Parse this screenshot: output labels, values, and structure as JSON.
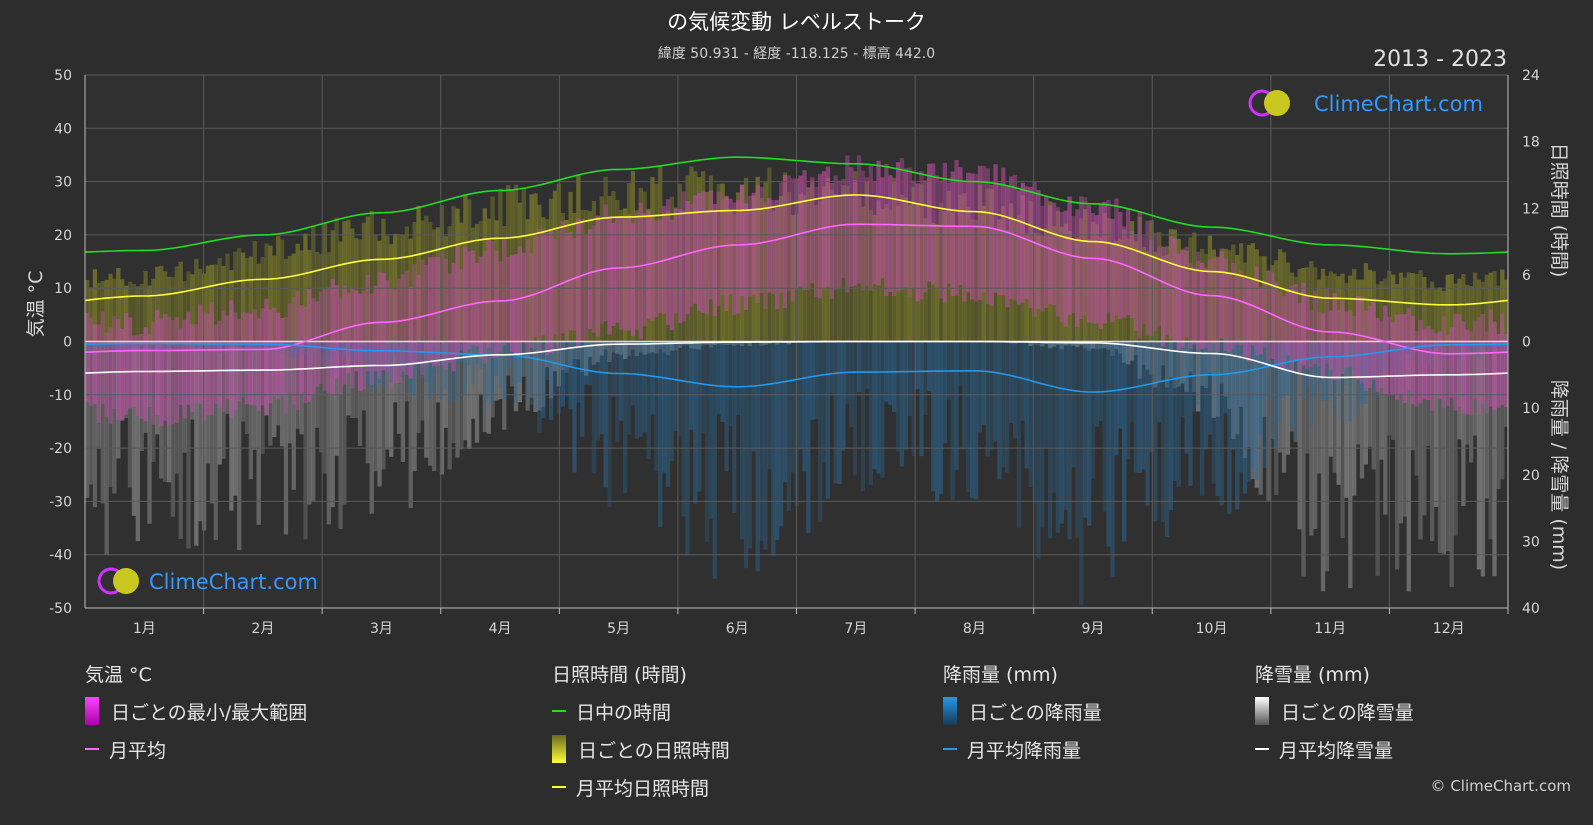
{
  "header": {
    "title": "の気候変動 レベルストーク",
    "subtitle": "緯度 50.931 - 経度 -118.125 - 標高 442.0",
    "years": "2013 - 2023"
  },
  "logo": {
    "text": "ClimeChart.com"
  },
  "copyright": "© ClimeChart.com",
  "colors": {
    "background": "#2d2d2d",
    "daylight": "#22dd22",
    "sunshine_avg": "#ffff33",
    "temp_avg": "#ff66ff",
    "rain_avg": "#2299ee",
    "snow_avg": "#ffffff",
    "logo_text": "#3399ff"
  },
  "legend": {
    "temp": {
      "header": "気温 °C",
      "range": "日ごとの最小/最大範囲",
      "avg": "月平均"
    },
    "sun": {
      "header": "日照時間 (時間)",
      "daylight": "日中の時間",
      "daily": "日ごとの日照時間",
      "avg": "月平均日照時間"
    },
    "rain": {
      "header": "降雨量 (mm)",
      "daily": "日ごとの降雨量",
      "avg": "月平均降雨量"
    },
    "snow": {
      "header": "降雪量 (mm)",
      "daily": "日ごとの降雪量",
      "avg": "月平均降雪量"
    }
  },
  "chart_data": {
    "type": "line",
    "months": [
      "1月",
      "2月",
      "3月",
      "4月",
      "5月",
      "6月",
      "7月",
      "8月",
      "9月",
      "10月",
      "11月",
      "12月"
    ],
    "y_left": {
      "label": "気温 °C",
      "range": [
        -50,
        50
      ],
      "ticks": [
        50,
        40,
        30,
        20,
        10,
        0,
        -10,
        -20,
        -30,
        -40,
        -50
      ]
    },
    "y_right_top": {
      "label": "日照時間 (時間)",
      "range": [
        0,
        24
      ],
      "ticks": [
        24,
        18,
        12,
        6,
        0
      ]
    },
    "y_right_bottom": {
      "label": "降雨量 / 降雪量 (mm)",
      "range": [
        0,
        40
      ],
      "ticks": [
        10,
        20,
        30,
        40
      ]
    },
    "grid": true,
    "series": [
      {
        "name": "日中の時間",
        "axis": "sun",
        "values": [
          8.2,
          9.6,
          11.6,
          13.6,
          15.5,
          16.6,
          16.0,
          14.4,
          12.4,
          10.3,
          8.7,
          7.9
        ]
      },
      {
        "name": "月平均日照時間",
        "axis": "sun",
        "values": [
          4.1,
          5.6,
          7.4,
          9.3,
          11.2,
          11.8,
          13.2,
          11.7,
          9.0,
          6.3,
          3.9,
          3.3
        ]
      },
      {
        "name": "月平均",
        "axis": "temp",
        "values": [
          -1.7,
          -1.5,
          3.6,
          7.6,
          13.8,
          18.1,
          22.0,
          21.6,
          15.6,
          8.6,
          1.8,
          -2.3
        ]
      },
      {
        "name": "月平均降雨量",
        "axis": "precip",
        "values": [
          0.3,
          0.4,
          1.4,
          2.0,
          4.8,
          6.8,
          4.6,
          4.4,
          7.6,
          5.0,
          2.3,
          0.5
        ]
      },
      {
        "name": "月平均降雪量",
        "axis": "precip",
        "values": [
          4.5,
          4.3,
          3.6,
          2.0,
          0.4,
          0.1,
          0.0,
          0.0,
          0.2,
          1.8,
          5.4,
          5.0
        ]
      }
    ],
    "daily_temp_range": {
      "min": [
        -12,
        -10,
        -5,
        0,
        4,
        9,
        12,
        11,
        6,
        1,
        -4,
        -10
      ],
      "max": [
        1,
        4,
        9,
        15,
        21,
        25,
        30,
        29,
        23,
        13,
        5,
        1
      ]
    },
    "daily_sunshine_max": [
      6.5,
      9.0,
      11.5,
      13.5,
      15.0,
      15.2,
      15.0,
      13.5,
      11.5,
      9.5,
      7.0,
      6.0
    ]
  }
}
